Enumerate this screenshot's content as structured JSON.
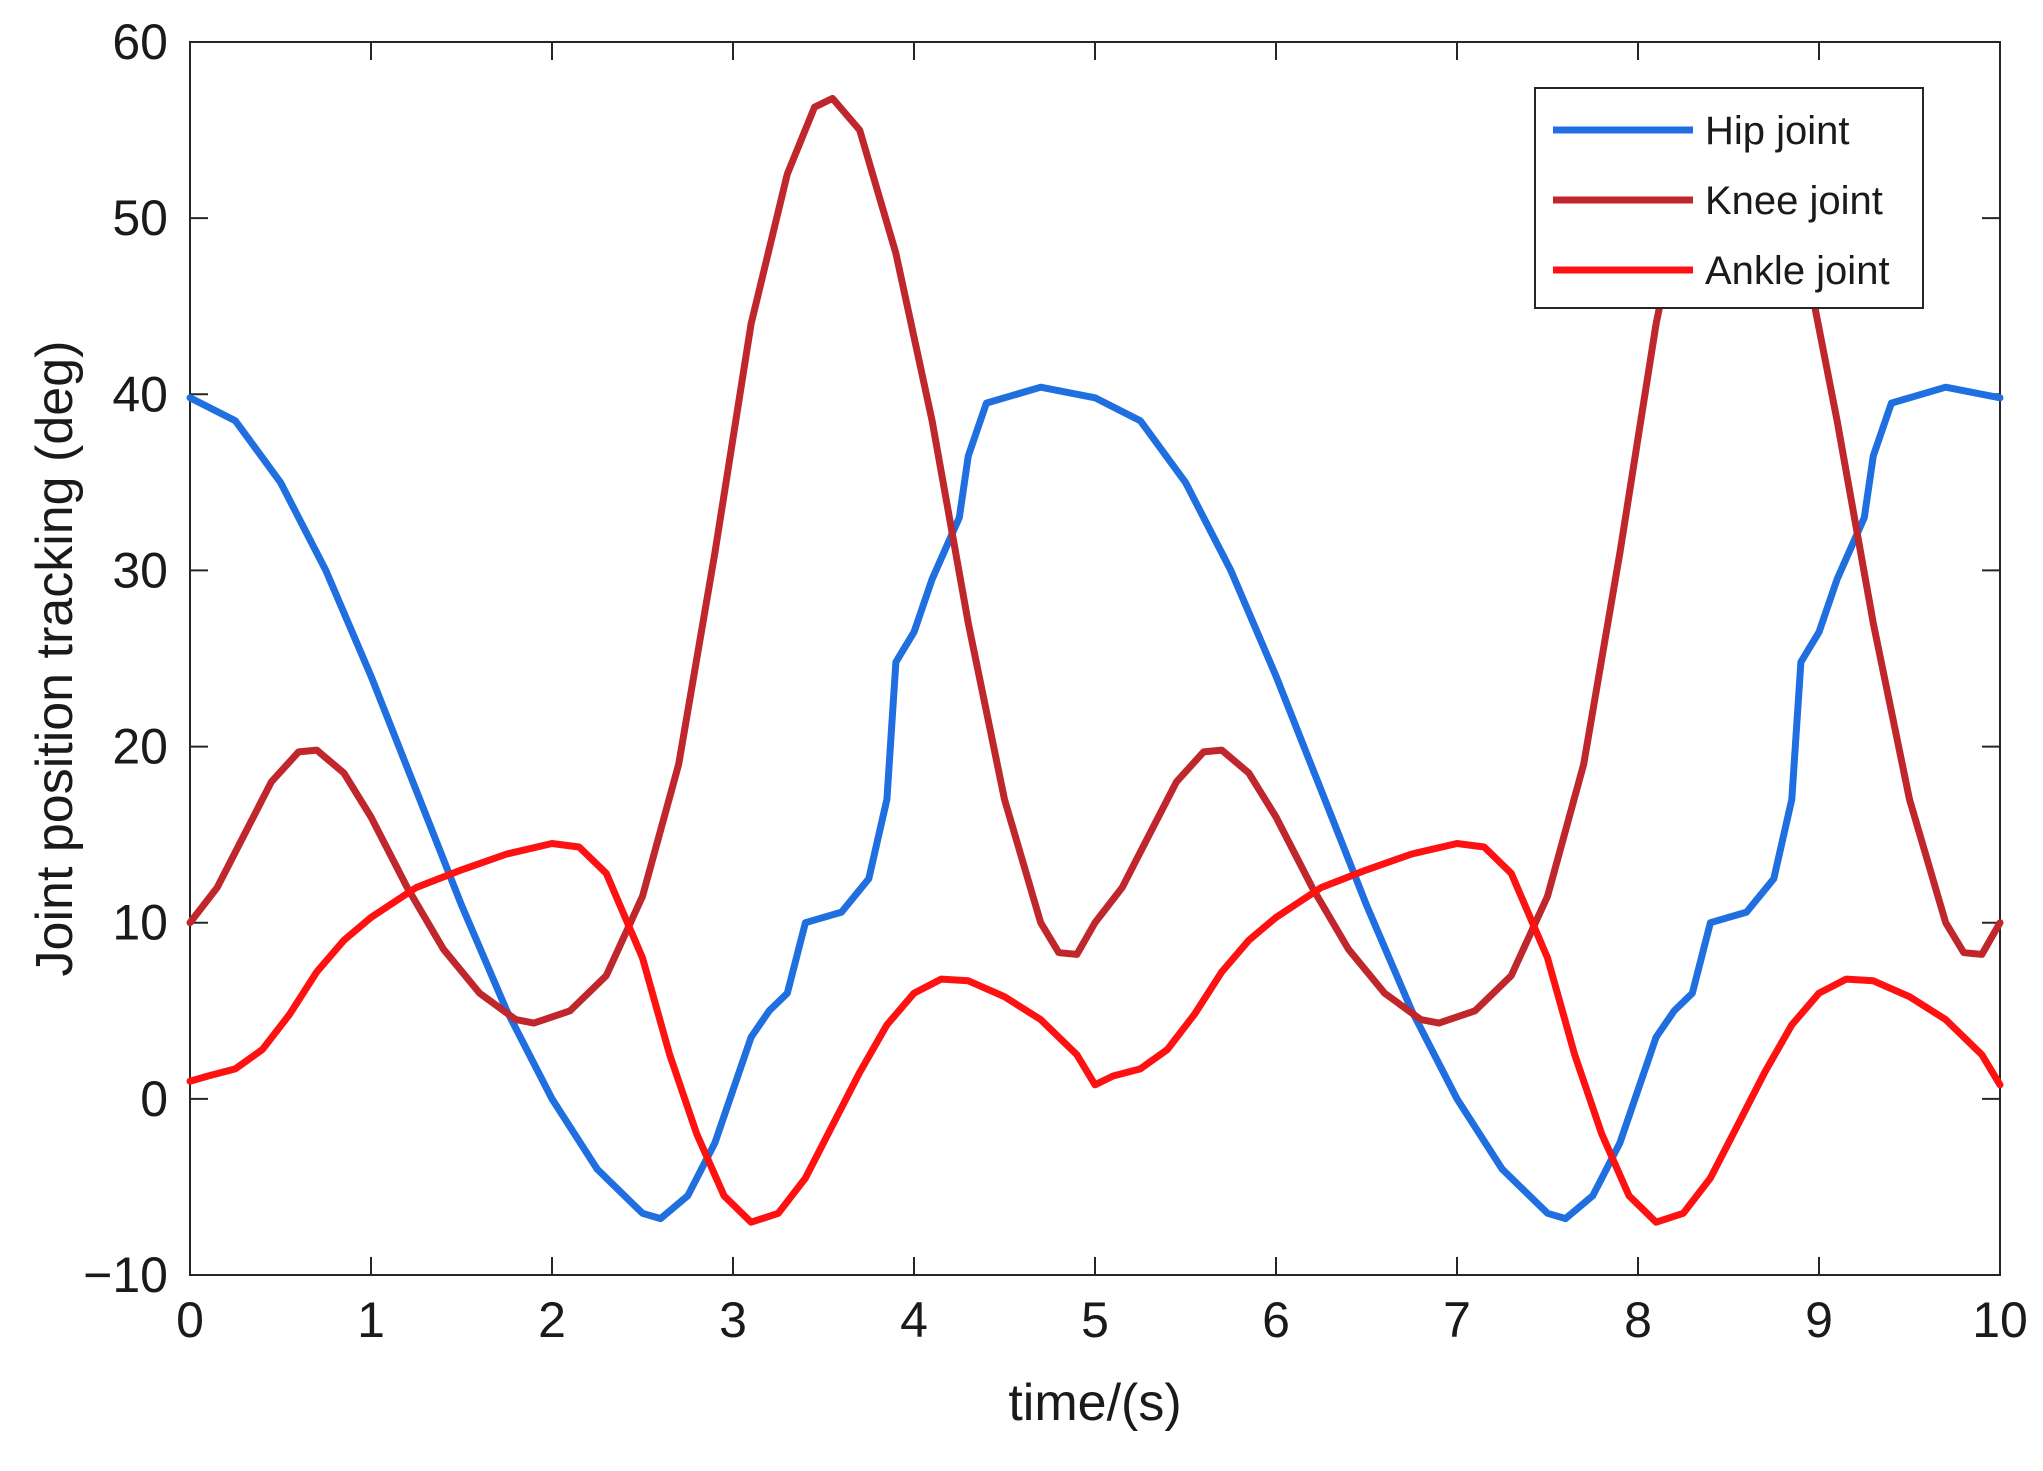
{
  "chart_data": {
    "type": "line",
    "title": "",
    "xlabel": "time/(s)",
    "ylabel": "Joint position tracking (deg)",
    "xlim": [
      0,
      10
    ],
    "ylim": [
      -10,
      60
    ],
    "x_ticks": [
      0,
      1,
      2,
      3,
      4,
      5,
      6,
      7,
      8,
      9,
      10
    ],
    "y_ticks": [
      -10,
      0,
      10,
      20,
      30,
      40,
      50,
      60
    ],
    "grid": false,
    "legend_position": "top-right",
    "series": [
      {
        "name": "Hip joint",
        "color": "#1f6fe0",
        "points": [
          [
            0,
            39.8
          ],
          [
            0.25,
            38.5
          ],
          [
            0.5,
            35
          ],
          [
            0.75,
            30
          ],
          [
            1,
            24
          ],
          [
            1.25,
            17.5
          ],
          [
            1.5,
            11
          ],
          [
            1.75,
            5
          ],
          [
            2,
            0
          ],
          [
            2.25,
            -4
          ],
          [
            2.5,
            -6.5
          ],
          [
            2.6,
            -6.8
          ],
          [
            2.75,
            -5.5
          ],
          [
            2.9,
            -2.5
          ],
          [
            3,
            0.5
          ],
          [
            3.1,
            3.5
          ],
          [
            3.2,
            5
          ],
          [
            3.3,
            6
          ],
          [
            3.4,
            10
          ],
          [
            3.6,
            10.6
          ],
          [
            3.75,
            12.5
          ],
          [
            3.85,
            17
          ],
          [
            3.9,
            24.8
          ],
          [
            4,
            26.5
          ],
          [
            4.1,
            29.5
          ],
          [
            4.25,
            33
          ],
          [
            4.3,
            36.5
          ],
          [
            4.4,
            39.5
          ],
          [
            4.7,
            40.4
          ],
          [
            5,
            39.8
          ],
          [
            5.25,
            38.5
          ],
          [
            5.5,
            35
          ],
          [
            5.75,
            30
          ],
          [
            6,
            24
          ],
          [
            6.25,
            17.5
          ],
          [
            6.5,
            11
          ],
          [
            6.75,
            5
          ],
          [
            7,
            0
          ],
          [
            7.25,
            -4
          ],
          [
            7.5,
            -6.5
          ],
          [
            7.6,
            -6.8
          ],
          [
            7.75,
            -5.5
          ],
          [
            7.9,
            -2.5
          ],
          [
            8,
            0.5
          ],
          [
            8.1,
            3.5
          ],
          [
            8.2,
            5
          ],
          [
            8.3,
            6
          ],
          [
            8.4,
            10
          ],
          [
            8.6,
            10.6
          ],
          [
            8.75,
            12.5
          ],
          [
            8.85,
            17
          ],
          [
            8.9,
            24.8
          ],
          [
            9,
            26.5
          ],
          [
            9.1,
            29.5
          ],
          [
            9.25,
            33
          ],
          [
            9.3,
            36.5
          ],
          [
            9.4,
            39.5
          ],
          [
            9.7,
            40.4
          ],
          [
            10,
            39.8
          ]
        ]
      },
      {
        "name": "Knee joint",
        "color": "#c0272d",
        "points": [
          [
            0,
            10
          ],
          [
            0.15,
            12
          ],
          [
            0.3,
            15
          ],
          [
            0.45,
            18
          ],
          [
            0.6,
            19.7
          ],
          [
            0.7,
            19.8
          ],
          [
            0.85,
            18.5
          ],
          [
            1,
            16
          ],
          [
            1.2,
            12
          ],
          [
            1.4,
            8.5
          ],
          [
            1.6,
            6
          ],
          [
            1.8,
            4.5
          ],
          [
            1.9,
            4.3
          ],
          [
            2.1,
            5
          ],
          [
            2.3,
            7
          ],
          [
            2.5,
            11.5
          ],
          [
            2.7,
            19
          ],
          [
            2.9,
            31
          ],
          [
            3.1,
            44
          ],
          [
            3.3,
            52.5
          ],
          [
            3.45,
            56.3
          ],
          [
            3.55,
            56.8
          ],
          [
            3.7,
            55
          ],
          [
            3.9,
            48
          ],
          [
            4.1,
            38.5
          ],
          [
            4.3,
            27
          ],
          [
            4.5,
            17
          ],
          [
            4.7,
            10
          ],
          [
            4.8,
            8.3
          ],
          [
            4.9,
            8.2
          ],
          [
            5,
            10
          ],
          [
            5.15,
            12
          ],
          [
            5.3,
            15
          ],
          [
            5.45,
            18
          ],
          [
            5.6,
            19.7
          ],
          [
            5.7,
            19.8
          ],
          [
            5.85,
            18.5
          ],
          [
            6,
            16
          ],
          [
            6.2,
            12
          ],
          [
            6.4,
            8.5
          ],
          [
            6.6,
            6
          ],
          [
            6.8,
            4.5
          ],
          [
            6.9,
            4.3
          ],
          [
            7.1,
            5
          ],
          [
            7.3,
            7
          ],
          [
            7.5,
            11.5
          ],
          [
            7.7,
            19
          ],
          [
            7.9,
            31
          ],
          [
            8.1,
            44
          ],
          [
            8.2,
            49
          ],
          [
            8.9,
            49
          ],
          [
            9.1,
            38.5
          ],
          [
            9.3,
            27
          ],
          [
            9.5,
            17
          ],
          [
            9.7,
            10
          ],
          [
            9.8,
            8.3
          ],
          [
            9.9,
            8.2
          ],
          [
            10,
            10
          ]
        ]
      },
      {
        "name": "Ankle joint",
        "color": "#ff1111",
        "points": [
          [
            0,
            1
          ],
          [
            0.1,
            1.3
          ],
          [
            0.25,
            1.7
          ],
          [
            0.4,
            2.8
          ],
          [
            0.55,
            4.8
          ],
          [
            0.7,
            7.2
          ],
          [
            0.85,
            9
          ],
          [
            1,
            10.3
          ],
          [
            1.25,
            12
          ],
          [
            1.5,
            13
          ],
          [
            1.75,
            13.9
          ],
          [
            2,
            14.5
          ],
          [
            2.15,
            14.3
          ],
          [
            2.3,
            12.8
          ],
          [
            2.5,
            8
          ],
          [
            2.65,
            2.5
          ],
          [
            2.8,
            -2
          ],
          [
            2.95,
            -5.5
          ],
          [
            3.1,
            -7
          ],
          [
            3.25,
            -6.5
          ],
          [
            3.4,
            -4.5
          ],
          [
            3.55,
            -1.5
          ],
          [
            3.7,
            1.5
          ],
          [
            3.85,
            4.2
          ],
          [
            4,
            6
          ],
          [
            4.15,
            6.8
          ],
          [
            4.3,
            6.7
          ],
          [
            4.5,
            5.8
          ],
          [
            4.7,
            4.5
          ],
          [
            4.9,
            2.5
          ],
          [
            5,
            0.8
          ],
          [
            5.1,
            1.3
          ],
          [
            5.25,
            1.7
          ],
          [
            5.4,
            2.8
          ],
          [
            5.55,
            4.8
          ],
          [
            5.7,
            7.2
          ],
          [
            5.85,
            9
          ],
          [
            6,
            10.3
          ],
          [
            6.25,
            12
          ],
          [
            6.5,
            13
          ],
          [
            6.75,
            13.9
          ],
          [
            7,
            14.5
          ],
          [
            7.15,
            14.3
          ],
          [
            7.3,
            12.8
          ],
          [
            7.5,
            8
          ],
          [
            7.65,
            2.5
          ],
          [
            7.8,
            -2
          ],
          [
            7.95,
            -5.5
          ],
          [
            8.1,
            -7
          ],
          [
            8.25,
            -6.5
          ],
          [
            8.4,
            -4.5
          ],
          [
            8.55,
            -1.5
          ],
          [
            8.7,
            1.5
          ],
          [
            8.85,
            4.2
          ],
          [
            9,
            6
          ],
          [
            9.15,
            6.8
          ],
          [
            9.3,
            6.7
          ],
          [
            9.5,
            5.8
          ],
          [
            9.7,
            4.5
          ],
          [
            9.9,
            2.5
          ],
          [
            10,
            0.8
          ]
        ]
      }
    ]
  }
}
